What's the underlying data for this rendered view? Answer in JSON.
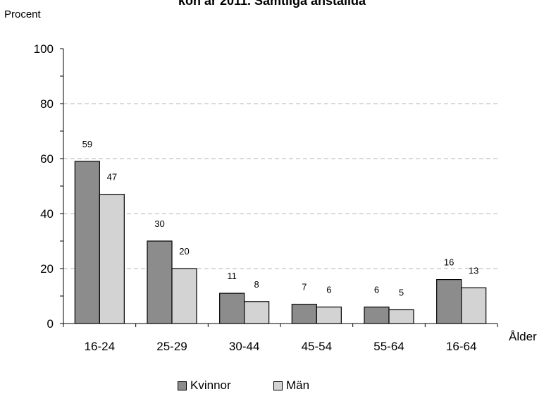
{
  "chart_data": {
    "type": "bar",
    "title": "kön år 2011. Samtliga anställda",
    "ylabel": "Procent",
    "xlabel": "Ålder",
    "categories": [
      "16-24",
      "25-29",
      "30-44",
      "45-54",
      "55-64",
      "16-64"
    ],
    "series": [
      {
        "name": "Kvinnor",
        "values": [
          59,
          30,
          11,
          7,
          6,
          16
        ],
        "color": "#8c8c8c"
      },
      {
        "name": "Män",
        "values": [
          47,
          20,
          8,
          6,
          5,
          13
        ],
        "color": "#d3d3d3"
      }
    ],
    "ylim": [
      0,
      100
    ],
    "yticks": [
      0,
      20,
      40,
      60,
      80,
      100
    ],
    "grid": true,
    "legend_position": "bottom"
  }
}
